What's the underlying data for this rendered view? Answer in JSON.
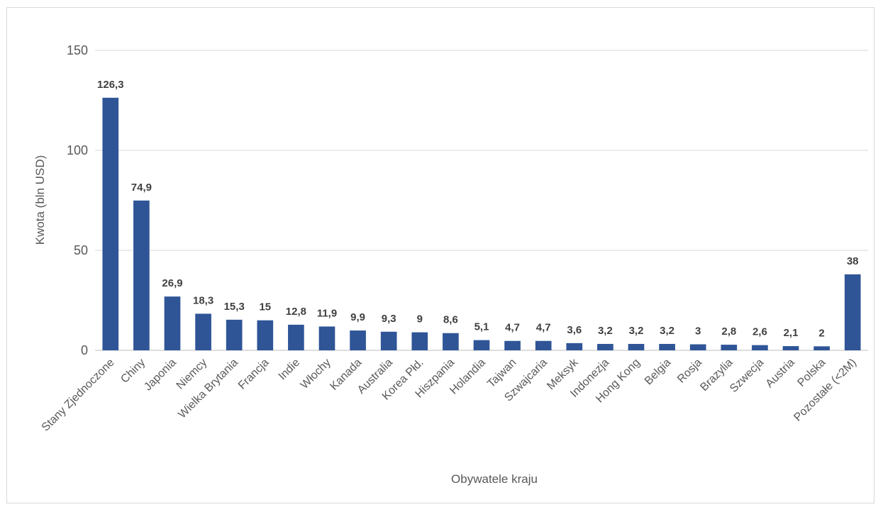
{
  "chart_data": {
    "type": "bar",
    "title": "",
    "xlabel": "Obywatele kraju",
    "ylabel": "Kwota (bln USD)",
    "ylim": [
      0,
      150
    ],
    "yticks": [
      "0",
      "50",
      "100",
      "150"
    ],
    "grid": true,
    "legend": "none",
    "bar_color": "#2f5597",
    "highlight_color": "#e00000",
    "categories": [
      "Stany Zjednoczone",
      "Chiny",
      "Japonia",
      "Niemcy",
      "Wielka Brytania",
      "Francja",
      "Indie",
      "Włochy",
      "Kanada",
      "Australia",
      "Korea Płd.",
      "Hiszpania",
      "Holandia",
      "Tajwan",
      "Szwajcaria",
      "Meksyk",
      "Indonezja",
      "Hong Kong",
      "Belgia",
      "Rosja",
      "Brazylia",
      "Szwecja",
      "Austria",
      "Polska",
      "Pozostałe (<2M)"
    ],
    "values": [
      126.3,
      74.9,
      26.9,
      18.3,
      15.3,
      15,
      12.8,
      11.9,
      9.9,
      9.3,
      9,
      8.6,
      5.1,
      4.7,
      4.7,
      3.6,
      3.2,
      3.2,
      3.2,
      3,
      2.8,
      2.6,
      2.1,
      2,
      38
    ],
    "data_labels": [
      "126,3",
      "74,9",
      "26,9",
      "18,3",
      "15,3",
      "15",
      "12,8",
      "11,9",
      "9,9",
      "9,3",
      "9",
      "8,6",
      "5,1",
      "4,7",
      "4,7",
      "3,6",
      "3,2",
      "3,2",
      "3,2",
      "3",
      "2,8",
      "2,6",
      "2,1",
      "2",
      "38"
    ],
    "highlight_category": "Polska"
  }
}
